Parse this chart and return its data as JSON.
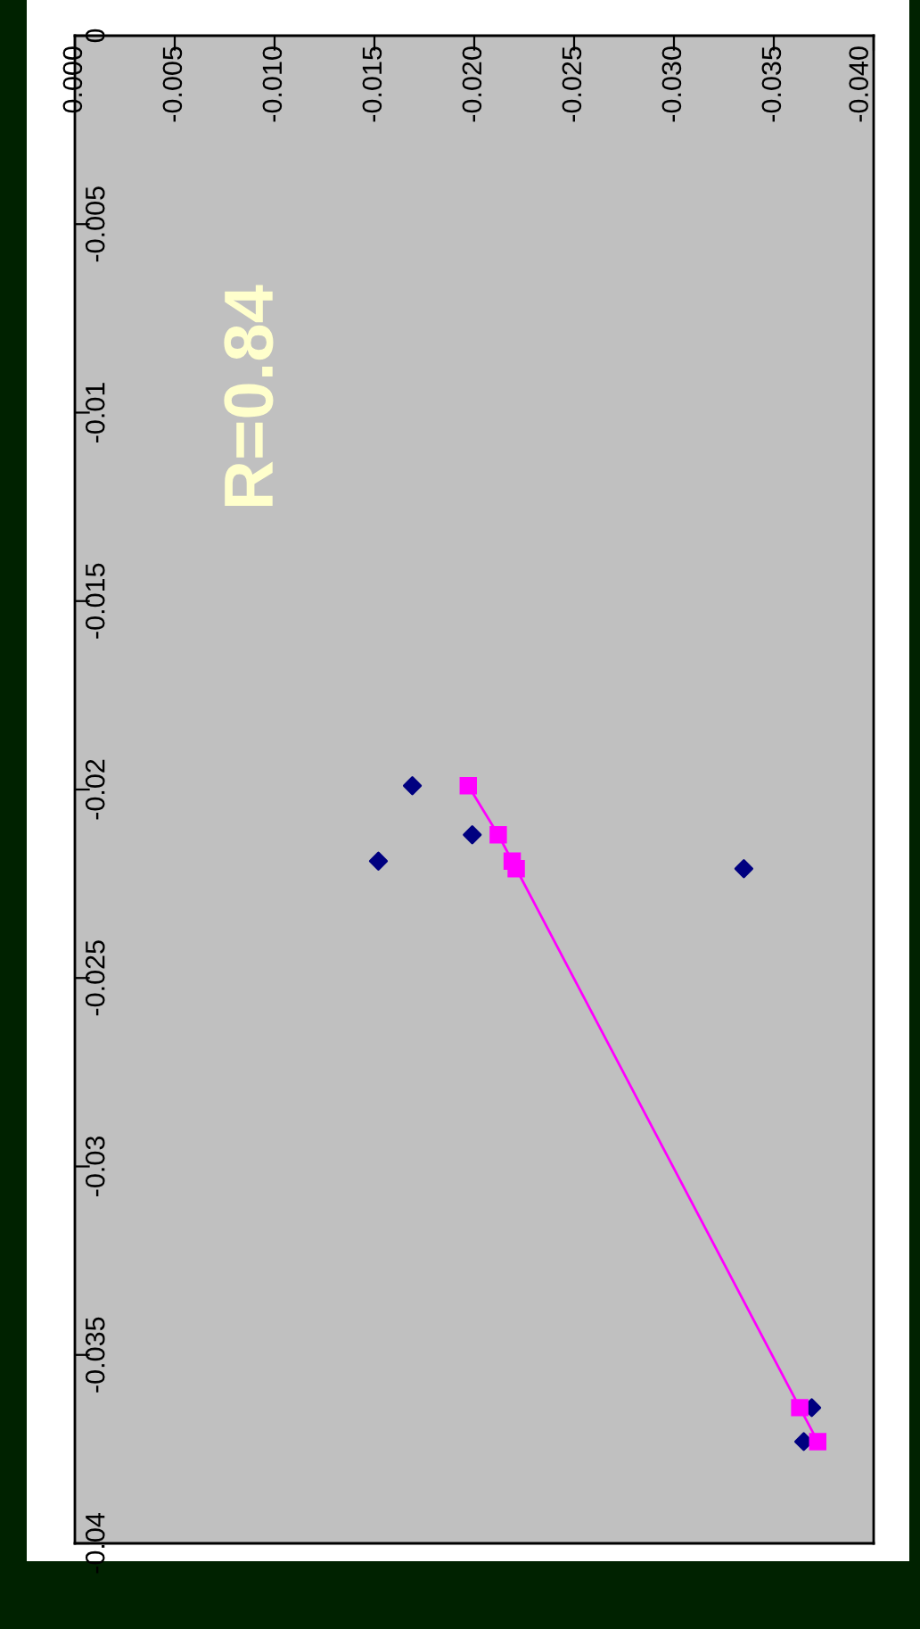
{
  "chart_data": {
    "type": "scatter",
    "annotations": [
      "R=0.84"
    ],
    "xlim": [
      0,
      -0.04
    ],
    "ylim": [
      -0.04,
      0
    ],
    "xticks": [
      {
        "value": 0,
        "label": "0.000"
      },
      {
        "value": -0.005,
        "label": "-0.005"
      },
      {
        "value": -0.01,
        "label": "-0.010"
      },
      {
        "value": -0.015,
        "label": "-0.015"
      },
      {
        "value": -0.02,
        "label": "-0.020"
      },
      {
        "value": -0.025,
        "label": "-0.025"
      },
      {
        "value": -0.03,
        "label": "-0.030"
      },
      {
        "value": -0.035,
        "label": "-0.035"
      },
      {
        "value": -0.04,
        "label": "-0.040"
      }
    ],
    "yticks": [
      0,
      -0.005,
      -0.01,
      -0.015,
      -0.02,
      -0.025,
      -0.03,
      -0.035,
      -0.04
    ],
    "grid": false,
    "legend": false,
    "series": [
      {
        "marker": "diamond",
        "color": "#000080",
        "x": [
          -0.0169,
          -0.0152,
          -0.0199,
          -0.0335,
          -0.0369,
          -0.0365
        ],
        "values": [
          -0.0199,
          -0.0219,
          -0.0212,
          -0.0221,
          -0.0364,
          -0.0373
        ]
      },
      {
        "type": "line",
        "marker": "square",
        "line_style": "solid",
        "color": "#ff00ff",
        "x": [
          -0.0197,
          -0.0212,
          -0.0219,
          -0.0221,
          -0.0363,
          -0.0372
        ],
        "values": [
          -0.0199,
          -0.0212,
          -0.0219,
          -0.0221,
          -0.0364,
          -0.0373
        ]
      }
    ]
  }
}
